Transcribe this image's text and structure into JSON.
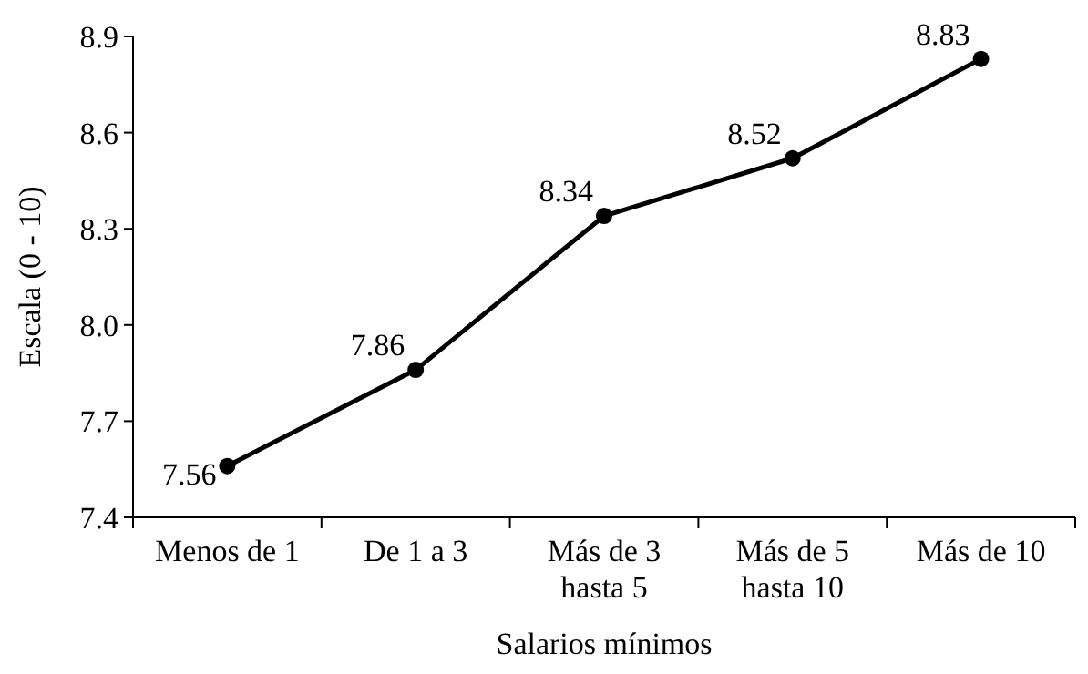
{
  "chart_data": {
    "type": "line",
    "xlabel": "Salarios mínimos",
    "ylabel": "Escala (0 - 10)",
    "categories": [
      "Menos de 1",
      "De 1 a 3",
      "Más de 3\nhasta 5",
      "Más de 5\nhasta 10",
      "Más de 10"
    ],
    "values": [
      7.56,
      7.86,
      8.34,
      8.52,
      8.83
    ],
    "color": "#000000",
    "ylim": [
      7.4,
      8.9
    ],
    "yticks": [
      7.4,
      7.7,
      {
        "value": 8,
        "label": "8.0"
      },
      8.3,
      8.6,
      8.9
    ],
    "data_labels": true,
    "marker": "circle",
    "line_style": "solid"
  }
}
